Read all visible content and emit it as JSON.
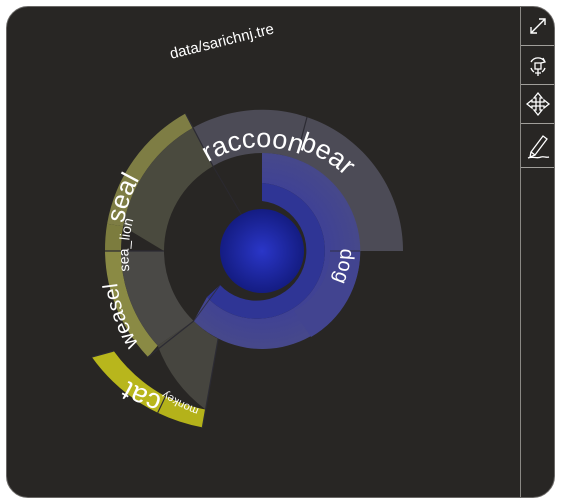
{
  "tree_file": "data/sarichnj.tre",
  "leaves": {
    "raccoon": "raccoon",
    "bear": "bear",
    "dog": "dog",
    "seal": "seal",
    "sea_lion": "sea_lion",
    "weasel": "weasel",
    "cat": "cat",
    "monkey": "monkey"
  },
  "toolbar": {
    "tools": [
      "expand-icon",
      "rotate-icon",
      "move-icon",
      "pencil-icon"
    ]
  },
  "colors": {
    "background": "#282624",
    "root": "#1a239a",
    "inner_ring": "#3d3f85",
    "grey_ring": "#4c4b56",
    "olive_ring": "#6c6c3a",
    "olive_outer": "#8d8d4a",
    "yellow": "#b8b61c"
  }
}
